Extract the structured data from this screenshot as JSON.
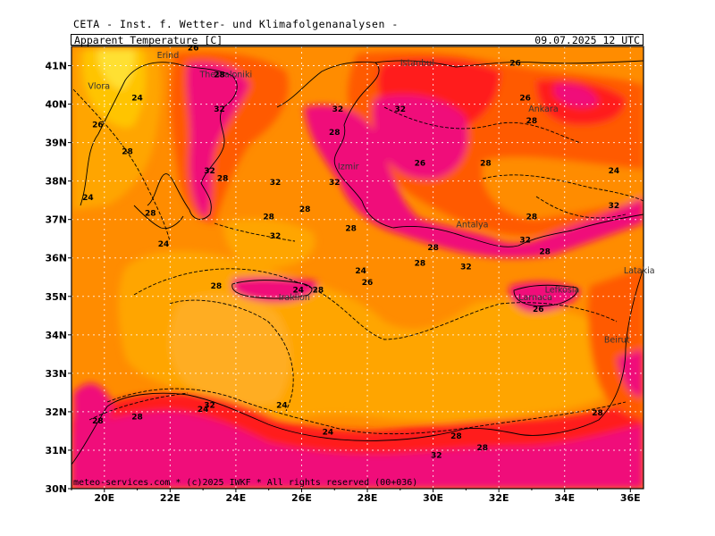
{
  "header": {
    "source": "CETA - Inst. f. Wetter- und Klimafolgenanalysen -",
    "parameter": "Apparent Temperature [C]",
    "valid_time": "09.07.2025 12 UTC"
  },
  "footer": {
    "copyright": "meteo-services.com * (c)2025 IWKF * All rights reserved (00+036)"
  },
  "axes": {
    "lon_labels": [
      "20E",
      "22E",
      "24E",
      "26E",
      "28E",
      "30E",
      "32E",
      "34E",
      "36E"
    ],
    "lat_labels": [
      "41N",
      "40N",
      "39N",
      "38N",
      "37N",
      "36N",
      "35N",
      "34N",
      "33N",
      "32N",
      "31N",
      "30N"
    ]
  },
  "places": [
    "Erind",
    "Thessaloniki",
    "Vlora",
    "Istanbul",
    "Ankara",
    "Izmir",
    "Antalya",
    "Lefkosia",
    "Larnaca",
    "Latakia",
    "Beirut",
    "Iraklion"
  ],
  "contour_labels": [
    "26",
    "24",
    "28",
    "32",
    "26",
    "28",
    "32",
    "28",
    "32",
    "24",
    "28",
    "24",
    "28",
    "32",
    "28",
    "32",
    "28",
    "26",
    "28",
    "28",
    "28",
    "26",
    "28",
    "26",
    "32",
    "28",
    "32",
    "24",
    "32",
    "24",
    "24",
    "28",
    "26",
    "24",
    "28",
    "24",
    "32",
    "28",
    "24",
    "28",
    "28",
    "32",
    "26",
    "28",
    "28",
    "28",
    "32",
    "32",
    "28"
  ],
  "colors": {
    "c24": "#ffa500",
    "c26": "#ff8c00",
    "c28": "#ff5a00",
    "c32": "#ff1a1a",
    "c35": "#f0107a",
    "cool": "#ffc800",
    "grid": "#ffffff"
  }
}
